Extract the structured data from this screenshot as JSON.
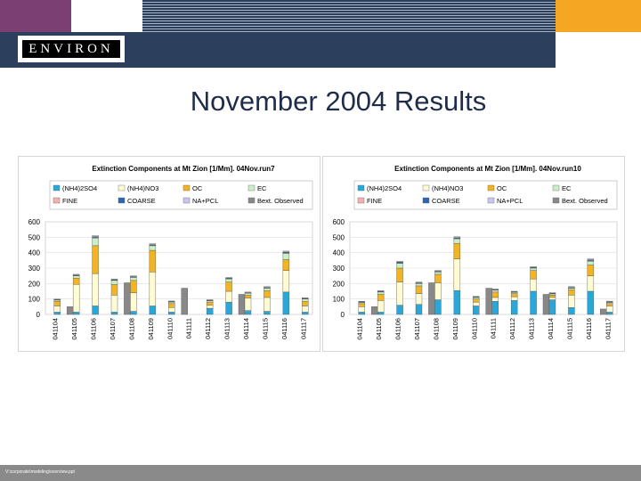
{
  "header": {
    "logo_text": "ENVIRON"
  },
  "slide": {
    "title": "November 2004 Results"
  },
  "footer": {
    "path": "V:\\corporate\\modeling\\overview.ppt"
  },
  "colors": {
    "nh4so4": "#29a7d8",
    "nh4no3": "#fffbd2",
    "oc": "#f2b325",
    "ec": "#c8f0c6",
    "fine": "#f4b0b4",
    "coarse": "#2a66b6",
    "napcl": "#c8c6ef",
    "bext": "#888888"
  },
  "chart_data": [
    {
      "type": "bar",
      "stacked": true,
      "title": "Extinction Components at Mt Zion [1/Mm]. 04Nov.run7",
      "categories": [
        "041104",
        "041105",
        "041106",
        "041107",
        "041108",
        "041109",
        "041110",
        "041111",
        "041112",
        "041113",
        "041114",
        "041115",
        "041116",
        "041117"
      ],
      "ylim": [
        0,
        600
      ],
      "yticks": [
        0,
        100,
        200,
        300,
        400,
        500,
        600
      ],
      "legend": {
        "position": "top",
        "entries": [
          "(NH4)2SO4",
          "(NH4)NO3",
          "OC",
          "EC",
          "FINE",
          "COARSE",
          "NA+PCL",
          "Bext. Observed"
        ]
      },
      "series": [
        {
          "name": "(NH4)2SO4",
          "values": [
            15,
            15,
            55,
            15,
            20,
            55,
            15,
            0,
            40,
            80,
            25,
            20,
            145,
            15
          ]
        },
        {
          "name": "(NH4)NO3",
          "values": [
            40,
            180,
            210,
            110,
            120,
            220,
            30,
            0,
            20,
            70,
            80,
            90,
            140,
            40
          ]
        },
        {
          "name": "OC",
          "values": [
            30,
            40,
            180,
            70,
            80,
            140,
            25,
            0,
            20,
            60,
            20,
            45,
            70,
            30
          ]
        },
        {
          "name": "EC",
          "values": [
            8,
            15,
            50,
            25,
            20,
            30,
            10,
            0,
            8,
            20,
            12,
            15,
            40,
            15
          ]
        },
        {
          "name": "FINE",
          "values": [
            2,
            2,
            4,
            2,
            2,
            3,
            2,
            0,
            2,
            2,
            2,
            2,
            4,
            2
          ]
        },
        {
          "name": "COARSE",
          "values": [
            2,
            3,
            5,
            3,
            3,
            4,
            2,
            0,
            2,
            3,
            2,
            3,
            5,
            2
          ]
        },
        {
          "name": "NA+PCL",
          "values": [
            3,
            5,
            6,
            5,
            5,
            6,
            3,
            0,
            3,
            5,
            4,
            5,
            6,
            4
          ]
        }
      ],
      "observed": [
        0,
        50,
        0,
        0,
        205,
        0,
        0,
        170,
        0,
        0,
        130,
        0,
        0,
        0
      ]
    },
    {
      "type": "bar",
      "stacked": true,
      "title": "Extinction Components at Mt Zion [1/Mm]. 04Nov.run10",
      "categories": [
        "041104",
        "041105",
        "041106",
        "041107",
        "041108",
        "041109",
        "041110",
        "041111",
        "041112",
        "041113",
        "041114",
        "041115",
        "041116",
        "041117"
      ],
      "ylim": [
        0,
        600
      ],
      "yticks": [
        0,
        100,
        200,
        300,
        400,
        500,
        600
      ],
      "legend": {
        "position": "top",
        "entries": [
          "(NH4)2SO4",
          "(NH4)NO3",
          "OC",
          "EC",
          "FINE",
          "COARSE",
          "NA+PCL",
          "Bext. Observed"
        ]
      },
      "series": [
        {
          "name": "(NH4)2SO4",
          "values": [
            15,
            15,
            60,
            65,
            95,
            155,
            55,
            85,
            90,
            150,
            95,
            45,
            150,
            15
          ]
        },
        {
          "name": "(NH4)NO3",
          "values": [
            35,
            75,
            150,
            70,
            110,
            205,
            25,
            25,
            25,
            80,
            15,
            80,
            100,
            40
          ]
        },
        {
          "name": "OC",
          "values": [
            20,
            40,
            90,
            50,
            55,
            100,
            20,
            35,
            20,
            55,
            15,
            35,
            70,
            15
          ]
        },
        {
          "name": "EC",
          "values": [
            8,
            15,
            30,
            15,
            15,
            30,
            10,
            12,
            8,
            15,
            8,
            10,
            25,
            8
          ]
        },
        {
          "name": "FINE",
          "values": [
            2,
            2,
            4,
            2,
            2,
            3,
            2,
            2,
            2,
            2,
            2,
            2,
            4,
            2
          ]
        },
        {
          "name": "COARSE",
          "values": [
            2,
            3,
            5,
            3,
            3,
            4,
            2,
            2,
            2,
            3,
            2,
            3,
            5,
            2
          ]
        },
        {
          "name": "NA+PCL",
          "values": [
            3,
            5,
            6,
            5,
            5,
            6,
            3,
            4,
            3,
            5,
            4,
            5,
            6,
            4
          ]
        }
      ],
      "observed": [
        0,
        50,
        0,
        0,
        205,
        0,
        0,
        170,
        0,
        0,
        130,
        0,
        0,
        35
      ]
    }
  ]
}
